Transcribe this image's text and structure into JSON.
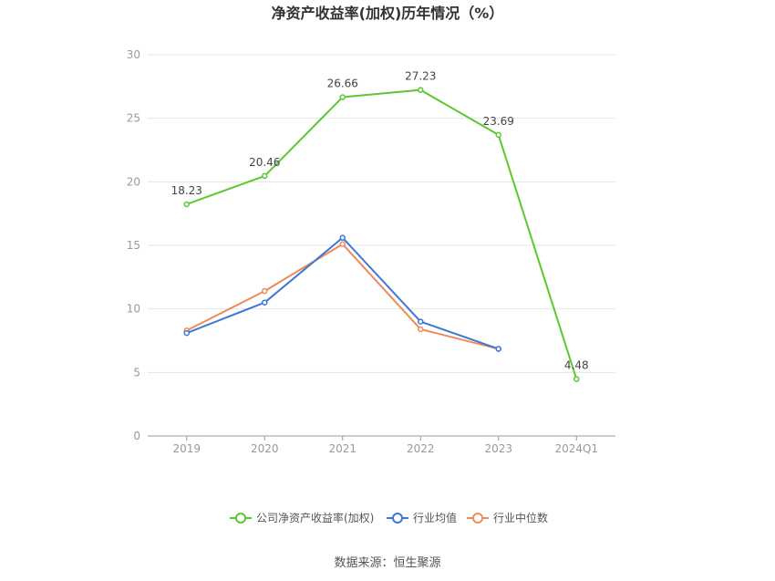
{
  "chart_data": {
    "type": "line",
    "title": "净资产收益率(加权)历年情况（%）",
    "categories": [
      "2019",
      "2020",
      "2021",
      "2022",
      "2023",
      "2024Q1"
    ],
    "ylim": [
      0,
      30
    ],
    "yticks": [
      0,
      5,
      10,
      15,
      20,
      25,
      30
    ],
    "grid": true,
    "legend_position": "bottom",
    "series": [
      {
        "name": "公司净资产收益率(加权)",
        "color": "#5cc72f",
        "values": [
          18.23,
          20.46,
          26.66,
          27.23,
          23.69,
          4.48
        ],
        "show_labels": true
      },
      {
        "name": "行业均值",
        "color": "#3b78d8",
        "values": [
          8.1,
          10.5,
          15.6,
          9.0,
          6.85,
          null
        ],
        "show_labels": false
      },
      {
        "name": "行业中位数",
        "color": "#ef8a5a",
        "values": [
          8.3,
          11.4,
          15.1,
          8.4,
          6.85,
          null
        ],
        "show_labels": false
      }
    ]
  },
  "source_text": "数据来源：恒生聚源"
}
